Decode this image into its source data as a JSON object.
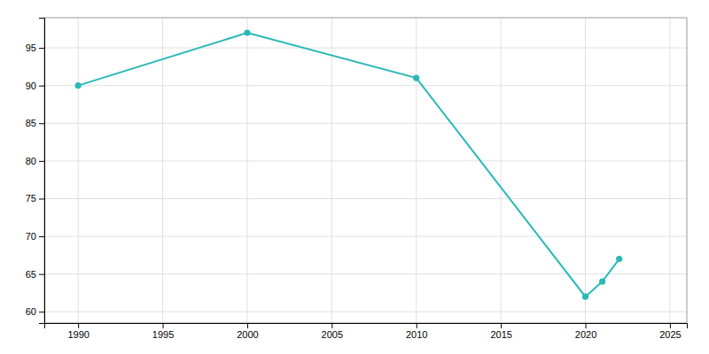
{
  "chart_data": {
    "type": "line",
    "x": [
      1990,
      2000,
      2010,
      2020,
      2021,
      2022
    ],
    "values": [
      90,
      97,
      91,
      62,
      64,
      67
    ],
    "color": "#29b8b8",
    "marker": "circle",
    "xlim": [
      1988,
      2026
    ],
    "ylim": [
      58.5,
      99
    ],
    "xticks": [
      1990,
      1995,
      2000,
      2005,
      2010,
      2015,
      2020,
      2025
    ],
    "yticks": [
      60,
      65,
      70,
      75,
      80,
      85,
      90,
      95
    ],
    "grid": true
  }
}
